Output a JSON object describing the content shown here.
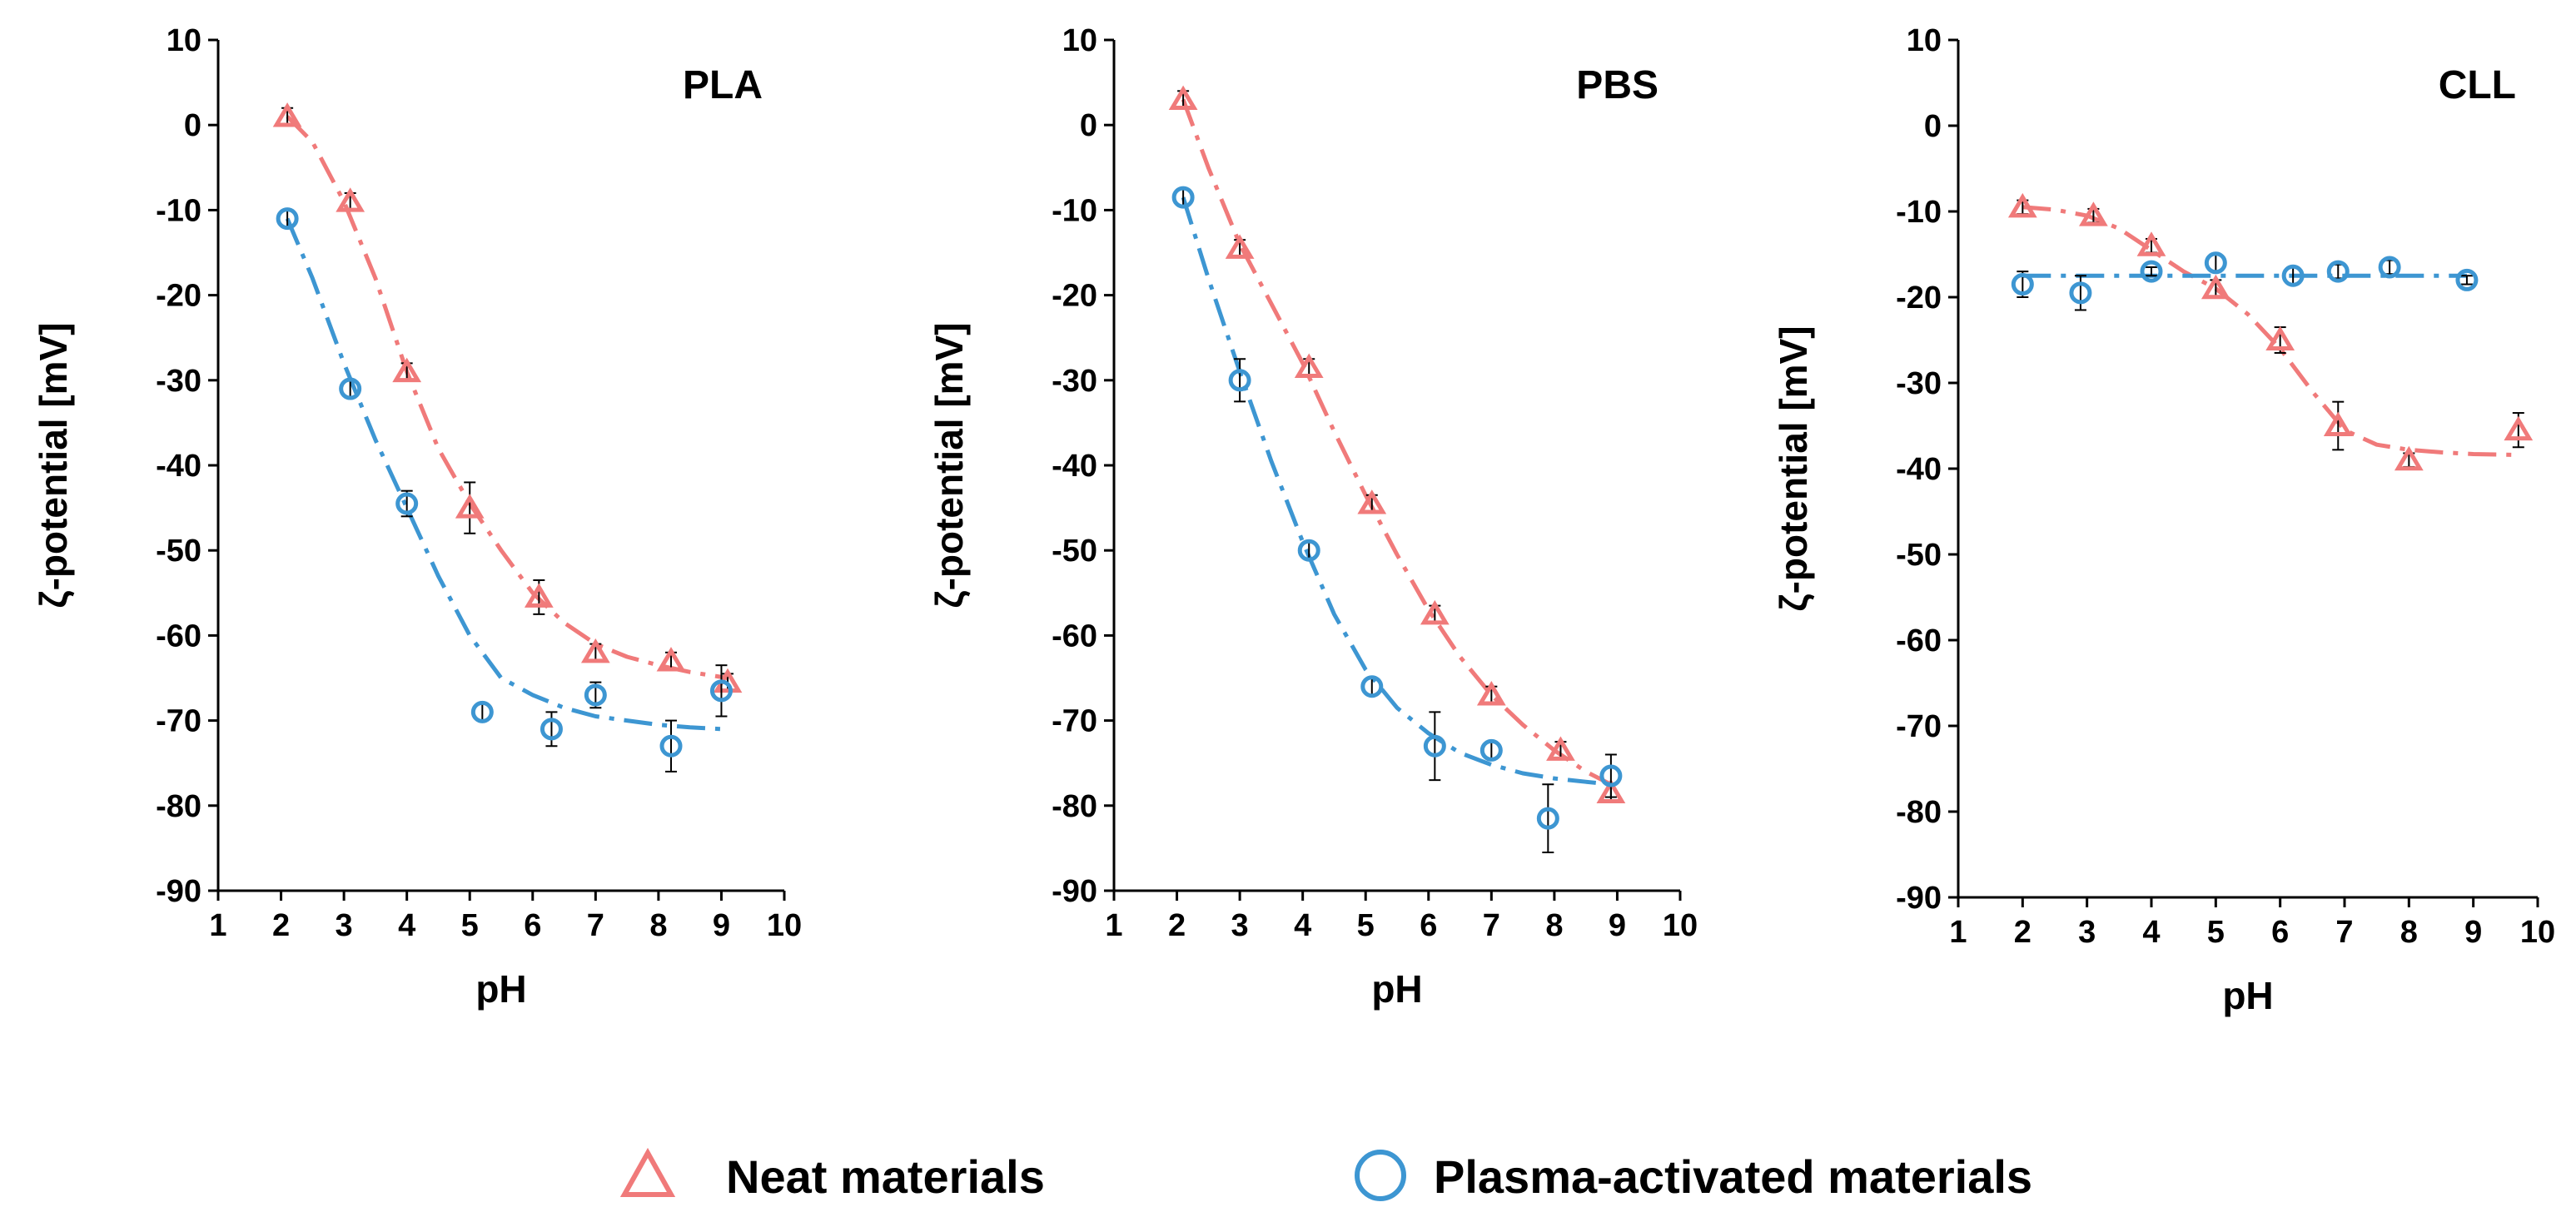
{
  "legend": {
    "neat": "Neat materials",
    "plasma": "Plasma-activated materials"
  },
  "colors": {
    "neat": "#F07A7A",
    "plasma": "#3D96D2",
    "axis": "#000000"
  },
  "chart_data": [
    {
      "type": "scatter",
      "title": "PLA",
      "xlabel": "pH",
      "ylabel": "ζ-potential [mV]",
      "xlim": [
        1,
        10
      ],
      "ylim": [
        -90,
        10
      ],
      "xticks": [
        1,
        2,
        3,
        4,
        5,
        6,
        7,
        8,
        9,
        10
      ],
      "yticks": [
        10,
        0,
        -10,
        -20,
        -30,
        -40,
        -50,
        -60,
        -70,
        -80,
        -90
      ],
      "series": [
        {
          "name": "Neat materials",
          "marker": "triangle",
          "x": [
            2.1,
            3.1,
            4.0,
            5.0,
            6.1,
            7.0,
            8.2,
            9.1
          ],
          "y": [
            1,
            -9,
            -29,
            -45,
            -55.5,
            -62,
            -63,
            -65.5
          ],
          "err": [
            1,
            1,
            1,
            3,
            2,
            1,
            1,
            1
          ],
          "fit_x": [
            2.1,
            2.5,
            3.0,
            3.5,
            4.0,
            4.5,
            5.0,
            5.5,
            6.0,
            6.5,
            7.0,
            7.5,
            8.0,
            8.5,
            9.1
          ],
          "fit_y": [
            1,
            -2,
            -9,
            -18,
            -29,
            -38,
            -44.5,
            -50,
            -55,
            -58.5,
            -61,
            -62.5,
            -63.5,
            -64.3,
            -65
          ]
        },
        {
          "name": "Plasma-activated materials",
          "marker": "circle",
          "x": [
            2.1,
            3.1,
            4.0,
            5.2,
            6.3,
            7.0,
            8.2,
            9.0
          ],
          "y": [
            -11,
            -31,
            -44.5,
            -69,
            -71,
            -67,
            -73,
            -66.5
          ],
          "err": [
            1,
            1,
            1.5,
            1,
            2,
            1.5,
            3,
            3
          ],
          "fit_x": [
            2.1,
            2.5,
            3.0,
            3.5,
            4.0,
            4.5,
            5.0,
            5.5,
            6.0,
            6.5,
            7.0,
            7.5,
            8.0,
            8.5,
            9.0
          ],
          "fit_y": [
            -11,
            -18,
            -28,
            -37,
            -45,
            -53,
            -60,
            -65,
            -67,
            -68.5,
            -69.5,
            -70,
            -70.5,
            -70.8,
            -71
          ]
        }
      ]
    },
    {
      "type": "scatter",
      "title": "PBS",
      "xlabel": "pH",
      "ylabel": "ζ-potential [mV]",
      "xlim": [
        1,
        10
      ],
      "ylim": [
        -90,
        10
      ],
      "xticks": [
        1,
        2,
        3,
        4,
        5,
        6,
        7,
        8,
        9,
        10
      ],
      "yticks": [
        10,
        0,
        -10,
        -20,
        -30,
        -40,
        -50,
        -60,
        -70,
        -80,
        -90
      ],
      "series": [
        {
          "name": "Neat materials",
          "marker": "triangle",
          "x": [
            2.1,
            3.0,
            4.1,
            5.1,
            6.1,
            7.0,
            8.1,
            8.9
          ],
          "y": [
            3,
            -14.5,
            -28.5,
            -44.5,
            -57.5,
            -67,
            -73.5,
            -78.5
          ],
          "err": [
            1,
            1,
            1,
            1,
            1,
            1,
            1,
            1
          ],
          "fit_x": [
            2.1,
            2.5,
            3.0,
            3.5,
            4.0,
            4.5,
            5.0,
            5.5,
            6.0,
            6.5,
            7.0,
            7.5,
            8.0,
            8.5,
            8.9
          ],
          "fit_y": [
            3,
            -5,
            -14,
            -21,
            -28,
            -36,
            -43.5,
            -50.5,
            -57,
            -62.5,
            -67,
            -70.5,
            -73.5,
            -76,
            -77.5
          ]
        },
        {
          "name": "Plasma-activated materials",
          "marker": "circle",
          "x": [
            2.1,
            3.0,
            4.1,
            5.1,
            6.1,
            7.0,
            7.9,
            8.9
          ],
          "y": [
            -8.5,
            -30,
            -50,
            -66,
            -73,
            -73.5,
            -81.5,
            -76.5
          ],
          "err": [
            1,
            2.5,
            1,
            1,
            4,
            1,
            4,
            2.5
          ],
          "fit_x": [
            2.1,
            2.5,
            3.0,
            3.5,
            4.0,
            4.5,
            5.0,
            5.5,
            6.0,
            6.5,
            7.0,
            7.5,
            8.0,
            8.5,
            8.9
          ],
          "fit_y": [
            -8.5,
            -18,
            -29,
            -39.5,
            -49,
            -57.5,
            -64,
            -68.5,
            -71.5,
            -73.8,
            -75.2,
            -76.2,
            -76.8,
            -77.2,
            -77.5
          ]
        }
      ]
    },
    {
      "type": "scatter",
      "title": "CLL",
      "xlabel": "pH",
      "ylabel": "ζ-potential [mV]",
      "xlim": [
        1,
        10
      ],
      "ylim": [
        -90,
        10
      ],
      "xticks": [
        1,
        2,
        3,
        4,
        5,
        6,
        7,
        8,
        9,
        10
      ],
      "yticks": [
        10,
        0,
        -10,
        -20,
        -30,
        -40,
        -50,
        -60,
        -70,
        -80,
        -90
      ],
      "series": [
        {
          "name": "Neat materials",
          "marker": "triangle",
          "x": [
            2.0,
            3.1,
            4.0,
            5.0,
            6.0,
            6.9,
            8.0,
            9.7
          ],
          "y": [
            -9.5,
            -10.5,
            -14,
            -19,
            -25,
            -35,
            -39,
            -35.5
          ],
          "err": [
            0.8,
            0.8,
            0.8,
            1,
            1.5,
            2.8,
            0.8,
            2
          ],
          "fit_x": [
            2.0,
            2.5,
            3.0,
            3.5,
            4.0,
            4.5,
            5.0,
            5.5,
            6.0,
            6.5,
            7.0,
            7.5,
            8.0,
            8.5,
            9.0,
            9.7
          ],
          "fit_y": [
            -9.5,
            -9.8,
            -10.5,
            -12,
            -14.5,
            -17,
            -19,
            -22,
            -26,
            -31,
            -35.5,
            -37.2,
            -37.8,
            -38.1,
            -38.3,
            -38.4
          ]
        },
        {
          "name": "Plasma-activated materials",
          "marker": "circle",
          "x": [
            2.0,
            2.9,
            4.0,
            5.0,
            6.2,
            6.9,
            7.7,
            8.9
          ],
          "y": [
            -18.5,
            -19.5,
            -17,
            -16,
            -17.5,
            -17,
            -16.5,
            -18
          ],
          "err": [
            1.5,
            2,
            0.5,
            1,
            1,
            0.8,
            0.8,
            0.5
          ],
          "fit_x": [
            2.0,
            3.0,
            4.0,
            5.0,
            6.0,
            7.0,
            8.0,
            8.9
          ],
          "fit_y": [
            -17.5,
            -17.5,
            -17.5,
            -17.5,
            -17.5,
            -17.5,
            -17.5,
            -17.5
          ]
        }
      ]
    }
  ]
}
